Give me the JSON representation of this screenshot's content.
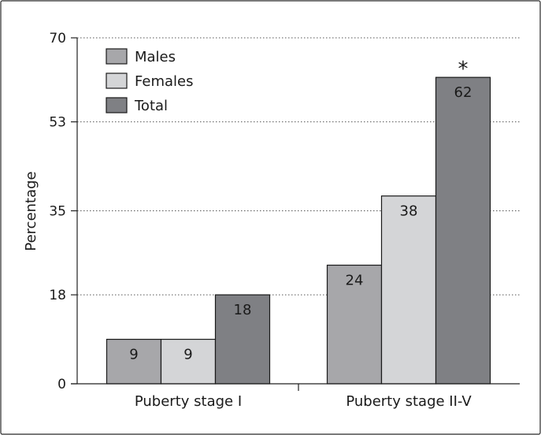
{
  "chart_data": {
    "type": "bar",
    "categories": [
      "Puberty stage I",
      "Puberty stage II-V"
    ],
    "series": [
      {
        "name": "Males",
        "values": [
          9,
          24
        ],
        "color": "#a7a7aa"
      },
      {
        "name": "Females",
        "values": [
          9,
          38
        ],
        "color": "#d4d5d7"
      },
      {
        "name": "Total",
        "values": [
          18,
          62
        ],
        "color": "#7f8084"
      }
    ],
    "ylabel": "Percentage",
    "xlabel": "",
    "ylim": [
      0,
      70
    ],
    "yticks": [
      0,
      18,
      35,
      53,
      70
    ],
    "grid": true,
    "legend": "top-left",
    "annotations": [
      {
        "category": "Puberty stage II-V",
        "series": "Total",
        "text": "*"
      }
    ]
  }
}
